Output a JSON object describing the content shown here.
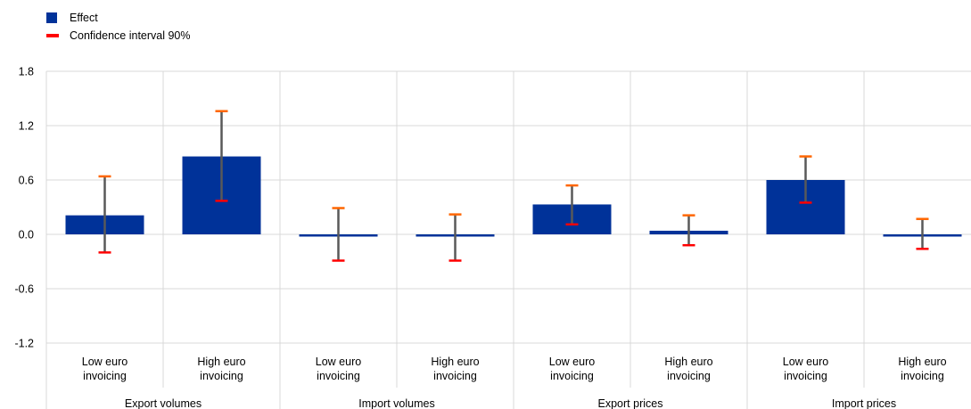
{
  "chart_data": {
    "type": "bar",
    "legend": {
      "position": "top-left",
      "items": [
        {
          "label": "Effect",
          "color": "#003299",
          "kind": "bar"
        },
        {
          "label": "Confidence interval 90%",
          "color": "#ff0000",
          "kind": "ci"
        }
      ]
    },
    "ylim": [
      -1.2,
      1.8
    ],
    "yticks": [
      "1.8",
      "1.2",
      "0.6",
      "0.0",
      "-0.6",
      "-1.2"
    ],
    "ytick_values": [
      1.8,
      1.2,
      0.6,
      0.0,
      -0.6,
      -1.2
    ],
    "groups": [
      {
        "label": "Export volumes",
        "categories": [
          "Low euro invoicing",
          "High euro invoicing"
        ]
      },
      {
        "label": "Import volumes",
        "categories": [
          "Low euro invoicing",
          "High euro invoicing"
        ]
      },
      {
        "label": "Export prices",
        "categories": [
          "Low euro invoicing",
          "High euro invoicing"
        ]
      },
      {
        "label": "Import prices",
        "categories": [
          "Low euro invoicing",
          "High euro invoicing"
        ]
      }
    ],
    "category_lines": [
      [
        "Low  euro",
        "invoicing"
      ],
      [
        "High  euro",
        "invoicing"
      ]
    ],
    "series": [
      {
        "name": "Effect",
        "values": [
          0.21,
          0.86,
          0.0,
          -0.02,
          0.33,
          0.04,
          0.6,
          0.0
        ]
      }
    ],
    "ci_low": [
      -0.2,
      0.37,
      -0.29,
      -0.29,
      0.11,
      -0.12,
      0.35,
      -0.16
    ],
    "ci_high": [
      0.64,
      1.36,
      0.29,
      0.22,
      0.54,
      0.21,
      0.86,
      0.17
    ],
    "colors": {
      "bar": "#003299",
      "ci_cap": "#ff0000",
      "ci_cap_top": "#ff6600",
      "whisker": "#595959",
      "grid": "#d9d9d9"
    },
    "grid": true
  }
}
